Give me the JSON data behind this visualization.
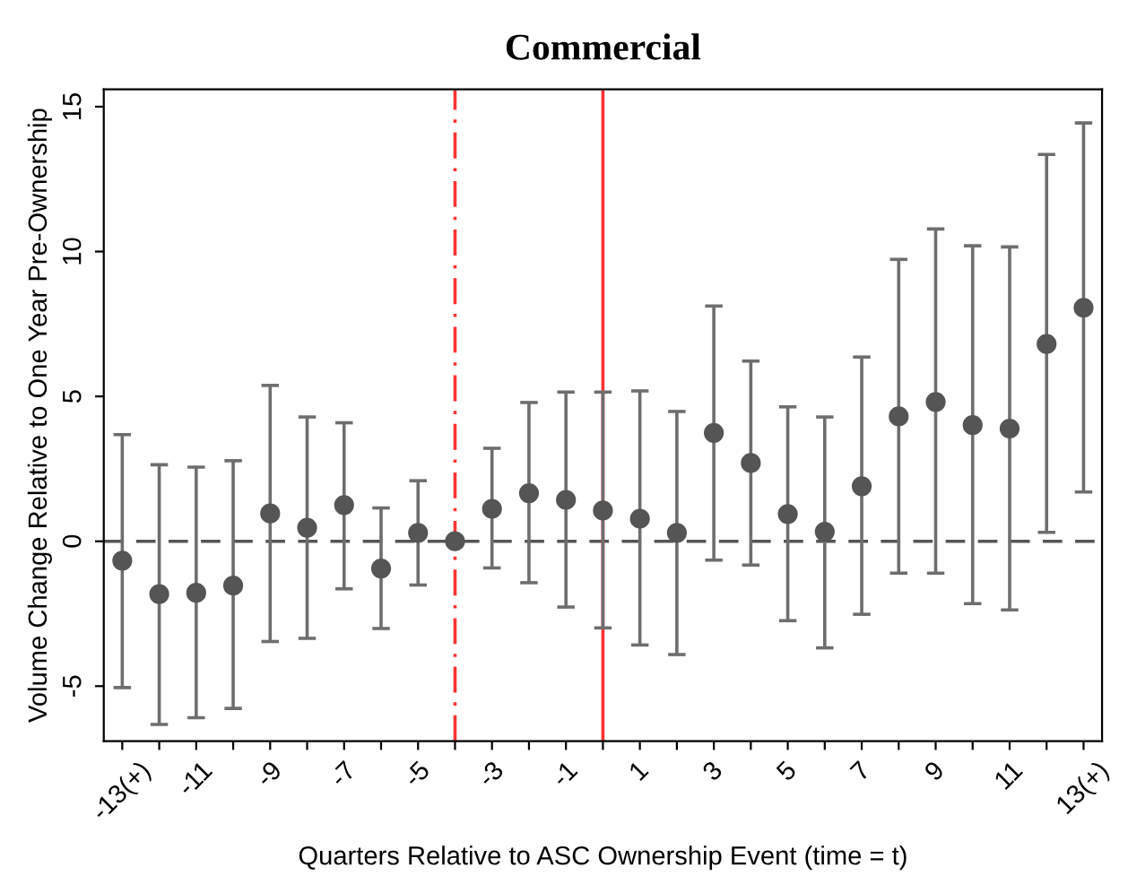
{
  "chart_data": {
    "type": "scatter",
    "title": "Commercial",
    "xlabel": "Quarters Relative to ASC Ownership Event (time = t)",
    "ylabel": "Volume Change Relative to One Year Pre-Ownership",
    "x": [
      -13,
      -12,
      -11,
      -10,
      -9,
      -8,
      -7,
      -6,
      -5,
      -4,
      -3,
      -2,
      -1,
      0,
      1,
      2,
      3,
      4,
      5,
      6,
      7,
      8,
      9,
      10,
      11,
      12,
      13
    ],
    "series": [
      {
        "color": "#555555",
        "values": [
          -0.67,
          -1.82,
          -1.78,
          -1.53,
          0.96,
          0.47,
          1.25,
          -0.94,
          0.29,
          0,
          1.12,
          1.66,
          1.43,
          1.06,
          0.78,
          0.29,
          3.74,
          2.7,
          0.94,
          0.33,
          1.9,
          4.31,
          4.81,
          4.01,
          3.89,
          6.81,
          8.06
        ],
        "errors": [
          [
            -5.05,
            3.68
          ],
          [
            -6.32,
            2.64
          ],
          [
            -6.09,
            2.56
          ],
          [
            -5.77,
            2.78
          ],
          [
            -3.46,
            5.38
          ],
          [
            -3.35,
            4.29
          ],
          [
            -1.64,
            4.09
          ],
          [
            -3.01,
            1.15
          ],
          [
            -1.51,
            2.09
          ],
          null,
          [
            -0.92,
            3.21
          ],
          [
            -1.43,
            4.79
          ],
          [
            -2.27,
            5.15
          ],
          [
            -2.99,
            5.15
          ],
          [
            -3.58,
            5.19
          ],
          [
            -3.91,
            4.48
          ],
          [
            -0.65,
            8.12
          ],
          [
            -0.82,
            6.22
          ],
          [
            -2.74,
            4.64
          ],
          [
            -3.68,
            4.29
          ],
          [
            -2.52,
            6.36
          ],
          [
            -1.1,
            9.73
          ],
          [
            -1.1,
            10.78
          ],
          [
            -2.15,
            10.2
          ],
          [
            -2.37,
            10.16
          ],
          [
            0.31,
            13.35
          ],
          [
            1.7,
            14.44
          ]
        ]
      }
    ],
    "marker": "circle",
    "xlim": [
      -13.5,
      13.5
    ],
    "ylim": [
      -6.9,
      15.6
    ],
    "xticks": [
      {
        "value": -13,
        "label": "-13(+)"
      },
      {
        "value": -12,
        "label": null
      },
      -11,
      {
        "value": -10,
        "label": null
      },
      -9,
      {
        "value": -8,
        "label": null
      },
      -7,
      {
        "value": -6,
        "label": null
      },
      -5,
      {
        "value": -4,
        "label": null
      },
      -3,
      {
        "value": -2,
        "label": null
      },
      -1,
      {
        "value": 0,
        "label": null
      },
      1,
      {
        "value": 2,
        "label": null
      },
      3,
      {
        "value": 4,
        "label": null
      },
      5,
      {
        "value": 6,
        "label": null
      },
      7,
      {
        "value": 8,
        "label": null
      },
      9,
      {
        "value": 10,
        "label": null
      },
      11,
      {
        "value": 12,
        "label": null
      },
      {
        "value": 13,
        "label": "13(+)"
      }
    ],
    "yticks": [
      -5,
      0,
      5,
      10,
      15
    ],
    "ref_lines": [
      {
        "axis": "y",
        "value": 0,
        "color": "#555555",
        "line_style": "dashed"
      },
      {
        "axis": "x",
        "value": -4,
        "color": "#ff3333",
        "line_style": "dashdot"
      },
      {
        "axis": "x",
        "value": 0,
        "color": "#ff3333",
        "line_style": "solid"
      }
    ],
    "grid": false,
    "legend": false
  }
}
